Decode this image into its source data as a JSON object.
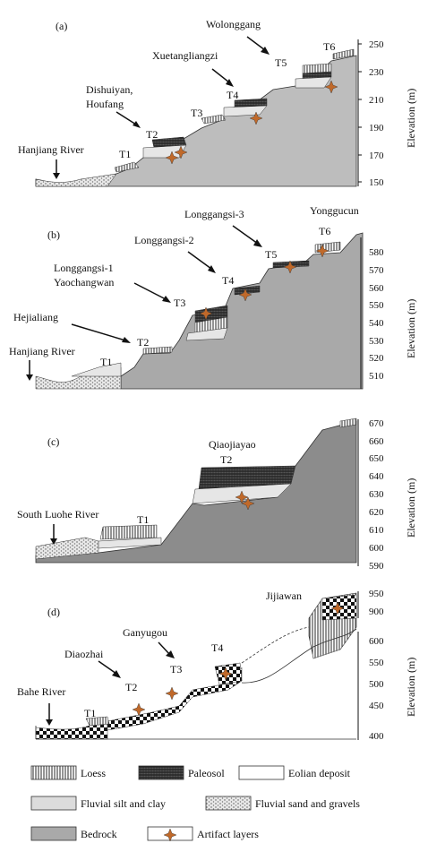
{
  "panels": [
    {
      "id": "a",
      "label": "(a)",
      "axis_title": "Elevation (m)",
      "ticks": [
        "250",
        "230",
        "210",
        "190",
        "170",
        "150"
      ],
      "river": "Hanjiang River",
      "terraces": [
        "T1",
        "T2",
        "T3",
        "T4",
        "T5",
        "T6"
      ],
      "sites": [
        "Dishuiyan,",
        "Houfang",
        "Xuetangliangzi",
        "Wolonggang"
      ]
    },
    {
      "id": "b",
      "label": "(b)",
      "axis_title": "Elevation (m)",
      "ticks": [
        "580",
        "570",
        "560",
        "550",
        "540",
        "530",
        "520",
        "510"
      ],
      "river": "Hanjiang River",
      "terraces": [
        "T1",
        "T2",
        "T3",
        "T4",
        "T5",
        "T6"
      ],
      "sites": [
        "Hejialiang",
        "Longgangsi-1",
        "Yaochangwan",
        "Longgangsi-2",
        "Longgangsi-3",
        "Yonggucun"
      ]
    },
    {
      "id": "c",
      "label": "(c)",
      "axis_title": "Elevation (m)",
      "ticks": [
        "670",
        "660",
        "650",
        "640",
        "630",
        "620",
        "610",
        "600",
        "590"
      ],
      "river": "South Luohe River",
      "terraces": [
        "T1",
        "T2"
      ],
      "sites": [
        "Qiaojiayao"
      ]
    },
    {
      "id": "d",
      "label": "(d)",
      "axis_title": "Elevation (m)",
      "ticks_upper": [
        "950",
        "900"
      ],
      "ticks": [
        "600",
        "550",
        "500",
        "450",
        "400"
      ],
      "river": "Bahe River",
      "terraces": [
        "T1",
        "T2",
        "T3",
        "T4"
      ],
      "sites": [
        "Diaozhai",
        "Ganyugou",
        "Jijiawan"
      ]
    }
  ],
  "legend": [
    {
      "key": "loess",
      "label": "Loess"
    },
    {
      "key": "paleosol",
      "label": "Paleosol"
    },
    {
      "key": "eolian",
      "label": "Eolian deposit"
    },
    {
      "key": "silt",
      "label": "Fluvial silt and clay"
    },
    {
      "key": "sand",
      "label": "Fluvial sand and gravels"
    },
    {
      "key": "bedrock",
      "label": "Bedrock"
    },
    {
      "key": "artifact",
      "label": "Artifact layers"
    }
  ],
  "colors": {
    "bedrock": "#a9a9a9",
    "bedrock_c": "#8c8c8c",
    "silt": "#dcdcdc",
    "artifact": "#c0692a"
  }
}
